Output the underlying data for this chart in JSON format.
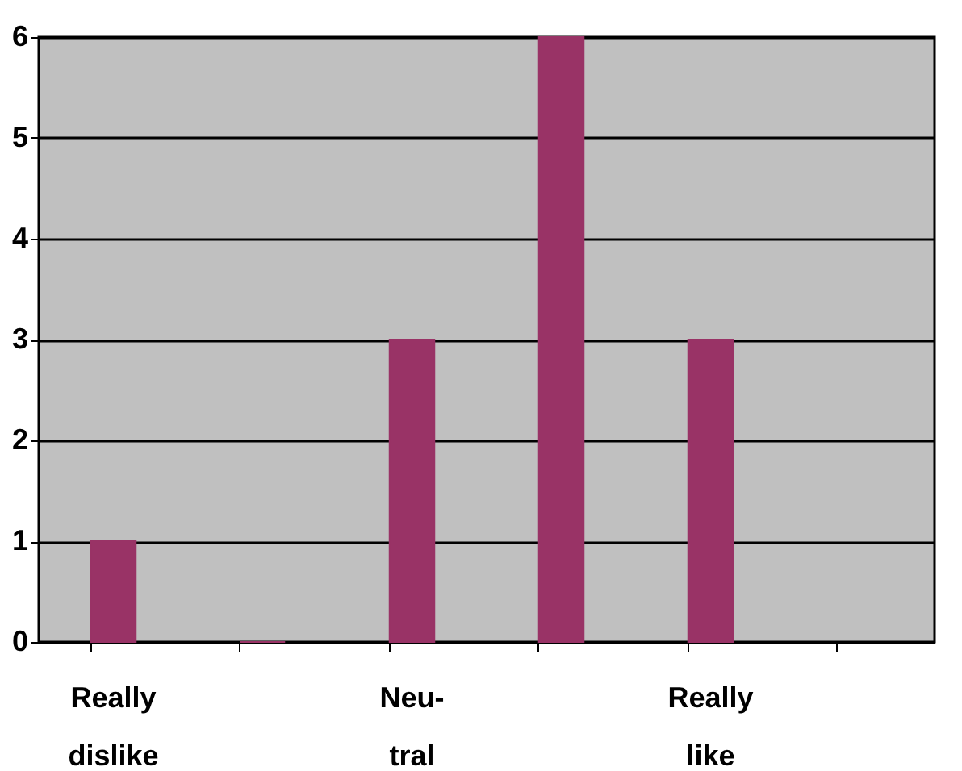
{
  "chart_data": {
    "type": "bar",
    "categories": [
      "Really dislike",
      null,
      "Neu-tral",
      null,
      "Really like",
      null
    ],
    "values": [
      1,
      0,
      3,
      6,
      3,
      null
    ],
    "color": "#993366",
    "ylim": [
      0,
      6
    ],
    "yticks": [
      0,
      1,
      2,
      3,
      4,
      5,
      6
    ],
    "grid": "y"
  }
}
